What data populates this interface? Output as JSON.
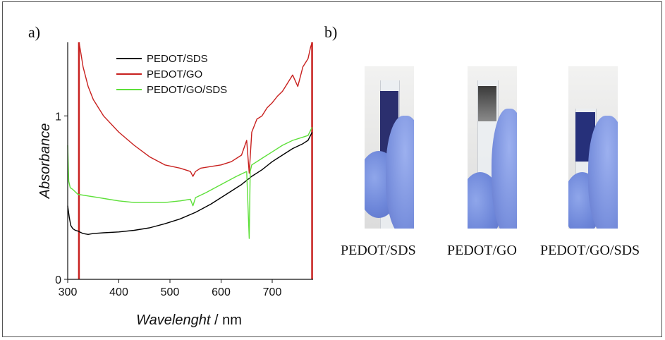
{
  "panels": {
    "a_label": "a)",
    "b_label": "b)"
  },
  "chart_data": {
    "type": "line",
    "xlabel_italic": "Wavelenght",
    "xlabel_unit": " / nm",
    "ylabel": "Absorbance",
    "xlim": [
      300,
      780
    ],
    "ylim": [
      0,
      1.45
    ],
    "xticks": [
      300,
      400,
      500,
      600,
      700
    ],
    "yticks": [
      0,
      1
    ],
    "legend_position": "top-center",
    "series": [
      {
        "name": "PEDOT/SDS",
        "color": "#000000",
        "x": [
          300,
          303,
          306,
          310,
          315,
          320,
          330,
          340,
          350,
          370,
          400,
          430,
          460,
          490,
          520,
          550,
          580,
          610,
          640,
          660,
          680,
          700,
          720,
          740,
          760,
          770,
          778
        ],
        "y": [
          0.45,
          0.38,
          0.33,
          0.31,
          0.3,
          0.295,
          0.28,
          0.275,
          0.28,
          0.285,
          0.29,
          0.3,
          0.315,
          0.34,
          0.37,
          0.41,
          0.46,
          0.52,
          0.58,
          0.63,
          0.67,
          0.72,
          0.76,
          0.8,
          0.83,
          0.85,
          0.9
        ]
      },
      {
        "name": "PEDOT/GO",
        "color": "#c8201e",
        "x": [
          322,
          325,
          330,
          340,
          350,
          370,
          400,
          430,
          460,
          490,
          520,
          540,
          545,
          550,
          560,
          580,
          600,
          620,
          640,
          650,
          655,
          660,
          670,
          680,
          690,
          700,
          710,
          720,
          730,
          740,
          750,
          760,
          770,
          775,
          778
        ],
        "y": [
          1.45,
          1.4,
          1.3,
          1.18,
          1.1,
          1.0,
          0.9,
          0.82,
          0.75,
          0.7,
          0.68,
          0.66,
          0.63,
          0.66,
          0.68,
          0.69,
          0.7,
          0.72,
          0.76,
          0.85,
          0.65,
          0.9,
          0.98,
          1.0,
          1.05,
          1.08,
          1.12,
          1.15,
          1.2,
          1.25,
          1.18,
          1.3,
          1.35,
          1.42,
          1.45
        ]
      },
      {
        "name": "PEDOT/GO/SDS",
        "color": "#5ee03a",
        "x": [
          300,
          302,
          305,
          310,
          320,
          340,
          360,
          380,
          400,
          430,
          460,
          490,
          520,
          540,
          545,
          550,
          570,
          600,
          630,
          650,
          655,
          657,
          660,
          680,
          700,
          720,
          740,
          760,
          770,
          778
        ],
        "y": [
          0.82,
          0.6,
          0.56,
          0.55,
          0.52,
          0.51,
          0.5,
          0.49,
          0.48,
          0.47,
          0.47,
          0.47,
          0.48,
          0.49,
          0.45,
          0.5,
          0.53,
          0.58,
          0.63,
          0.66,
          0.25,
          0.66,
          0.7,
          0.74,
          0.78,
          0.82,
          0.85,
          0.87,
          0.88,
          0.93
        ]
      }
    ],
    "vertical_lines": [
      {
        "x": 322,
        "color": "#c8201e"
      },
      {
        "x": 778,
        "color": "#c8201e"
      }
    ]
  },
  "photos": [
    {
      "caption": "PEDOT/SDS",
      "film_color": "#2b2f6e"
    },
    {
      "caption": "PEDOT/GO",
      "film_color": "#3a3a3a"
    },
    {
      "caption": "PEDOT/GO/SDS",
      "film_color": "#26307a"
    }
  ]
}
